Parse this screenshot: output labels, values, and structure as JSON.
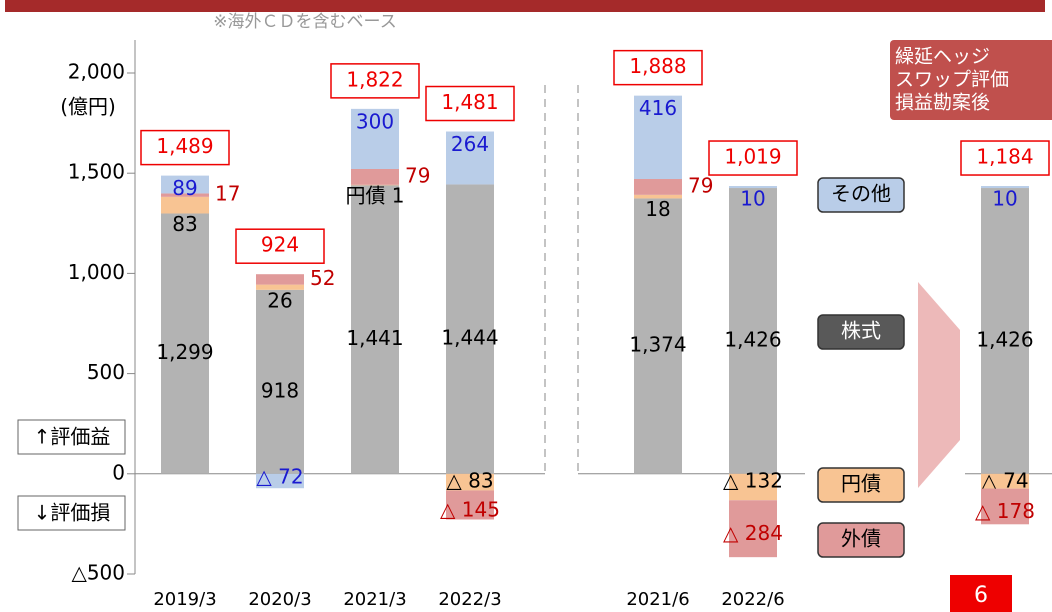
{
  "chart_data": {
    "type": "stacked-bar",
    "subtitle": "※海外ＣＤを含むベース",
    "y_label": "(億円)",
    "annotations": [
      "↑評価益",
      "↓評価損"
    ],
    "callout": [
      "繰延ヘッジ",
      "スワップ評価",
      "損益勘案後"
    ],
    "page_number": "6",
    "categories": [
      "2019/3",
      "2020/3",
      "2021/3",
      "2022/3",
      "2021/6",
      "2022/6",
      null
    ],
    "ylim": [
      -500,
      2000
    ],
    "yticks": [
      {
        "value": 2000,
        "label": "2,000"
      },
      {
        "value": 1500,
        "label": "1,500"
      },
      {
        "value": 1000,
        "label": "1,000"
      },
      500,
      0,
      {
        "value": -500,
        "label": "△500"
      }
    ],
    "series": [
      {
        "name": "株式",
        "color": "#b3b3b3",
        "values": [
          1299,
          918,
          1441,
          1444,
          1374,
          1426,
          1426
        ],
        "value_labels": [
          "1,299",
          "918",
          "1,441",
          "1,444",
          "1,374",
          "1,426",
          "1,426"
        ]
      },
      {
        "name": "円債",
        "color": "#f8c493",
        "values": [
          83,
          26,
          1,
          -83,
          18,
          -132,
          -74
        ],
        "value_labels": [
          "83",
          "26",
          "円債 1",
          "△ 83",
          "18",
          "△ 132",
          "△ 74"
        ]
      },
      {
        "name": "外債",
        "color": "#e09a9a",
        "values": [
          17,
          52,
          79,
          -145,
          79,
          -284,
          -178
        ],
        "value_labels": [
          "17",
          "52",
          "79",
          "△ 145",
          "79",
          "△ 284",
          "△ 178"
        ]
      },
      {
        "name": "その他",
        "color": "#b9cde8",
        "values": [
          89,
          -72,
          300,
          264,
          416,
          10,
          10
        ],
        "value_labels": [
          "89",
          "△ 72",
          "300",
          "264",
          "416",
          "10",
          "10"
        ]
      }
    ],
    "totals": {
      "values": [
        1489,
        924,
        1822,
        1481,
        1888,
        1019,
        1184
      ],
      "value_labels": [
        "1,489",
        "924",
        "1,822",
        "1,481",
        "1,888",
        "1,019",
        "1,184"
      ]
    }
  }
}
